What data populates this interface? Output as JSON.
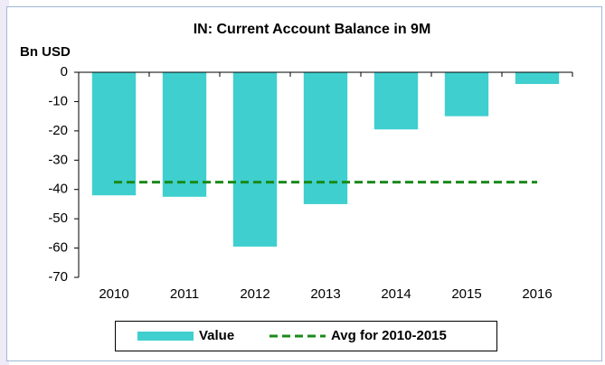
{
  "chart_data": {
    "type": "bar",
    "title": "IN: Current Account Balance in 9M",
    "y_axis_label": "Bn USD",
    "categories": [
      "2010",
      "2011",
      "2012",
      "2013",
      "2014",
      "2015",
      "2016"
    ],
    "series": [
      {
        "name": "Value",
        "type": "bar",
        "color": "#3fcfcf",
        "values": [
          -42,
          -42.5,
          -59.5,
          -45,
          -19.5,
          -15,
          -4
        ]
      },
      {
        "name": "Avg for 2010-2015",
        "type": "line",
        "color": "#1a8a1a",
        "dashed": true,
        "values": [
          -37.5,
          -37.5,
          -37.5,
          -37.5,
          -37.5,
          -37.5,
          -37.5
        ]
      }
    ],
    "ylim": [
      -70,
      0
    ],
    "yticks": [
      0,
      -10,
      -20,
      -30,
      -40,
      -50,
      -60,
      -70
    ],
    "legend": "bottom"
  }
}
